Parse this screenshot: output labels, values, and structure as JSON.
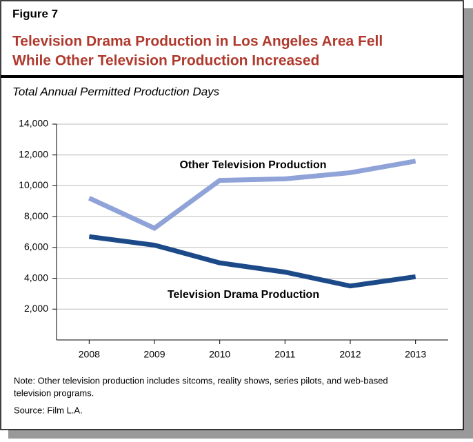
{
  "figure_label": "Figure 7",
  "title_lines": [
    "Television Drama Production in Los Angeles Area Fell",
    "While Other Television Production Increased"
  ],
  "chart_data": {
    "type": "line",
    "subtitle": "Total Annual Permitted Production Days",
    "categories": [
      "2008",
      "2009",
      "2010",
      "2011",
      "2012",
      "2013"
    ],
    "series": [
      {
        "name": "Other Television Production",
        "color": "#8fa3d8",
        "values": [
          9200,
          7250,
          10350,
          10450,
          10850,
          11600
        ]
      },
      {
        "name": "Television Drama Production",
        "color": "#1c4a89",
        "values": [
          6700,
          6150,
          5000,
          4400,
          3500,
          4100
        ]
      }
    ],
    "ylim": [
      0,
      14000
    ],
    "yticks": [
      {
        "value": 2000,
        "label": "2,000"
      },
      {
        "value": 4000,
        "label": "4,000"
      },
      {
        "value": 6000,
        "label": "6,000"
      },
      {
        "value": 8000,
        "label": "8,000"
      },
      {
        "value": 10000,
        "label": "10,000"
      },
      {
        "value": 12000,
        "label": "12,000"
      },
      {
        "value": 14000,
        "label": "14,000"
      }
    ],
    "grid": true
  },
  "notes": [
    "Note: Other television production includes sitcoms, reality shows, series pilots, and web-based",
    "television programs.",
    "Source: Film L.A."
  ]
}
